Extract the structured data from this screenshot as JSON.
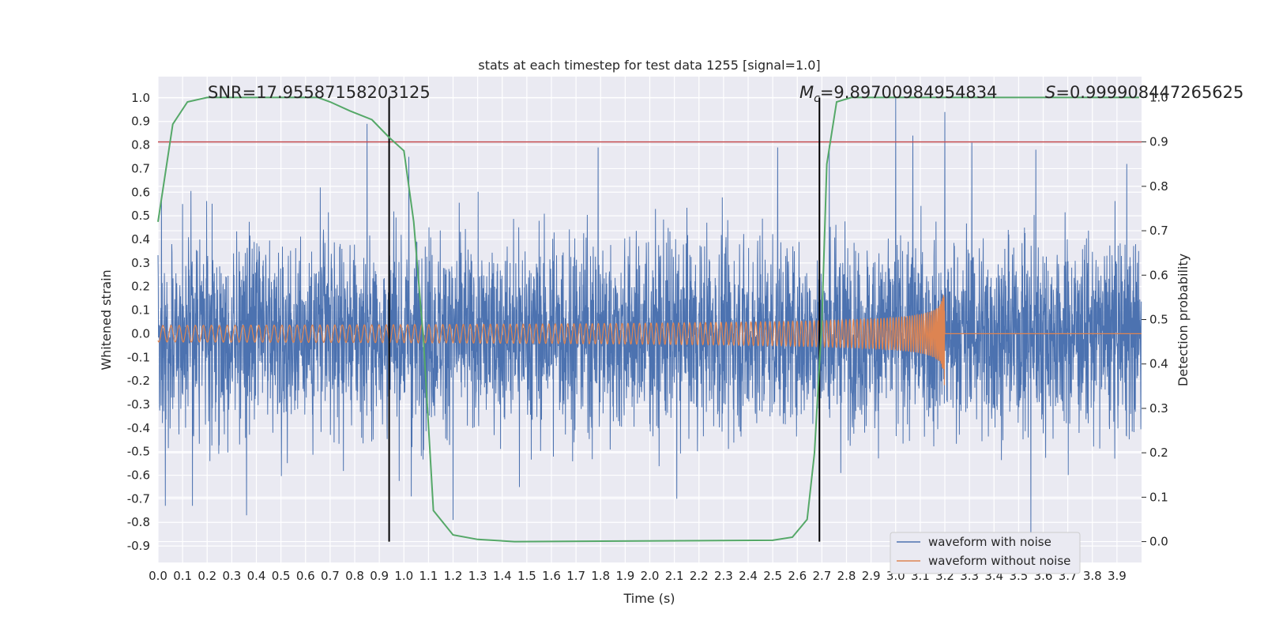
{
  "chart_data": {
    "type": "line",
    "title": "stats at each timestep for test data 1255 [signal=1.0]",
    "xlabel": "Time (s)",
    "ylabel": "Whitened strain",
    "y2label": "Detection probability",
    "xlim": [
      0.0,
      4.0
    ],
    "ylim": [
      -0.97,
      1.09
    ],
    "y2lim": [
      -0.047,
      1.047
    ],
    "xticks": [
      "0.0",
      "0.1",
      "0.2",
      "0.3",
      "0.4",
      "0.5",
      "0.6",
      "0.7",
      "0.8",
      "0.9",
      "1.0",
      "1.1",
      "1.2",
      "1.3",
      "1.4",
      "1.5",
      "1.6",
      "1.7",
      "1.8",
      "1.9",
      "2.0",
      "2.1",
      "2.2",
      "2.3",
      "2.4",
      "2.5",
      "2.6",
      "2.7",
      "2.8",
      "2.9",
      "3.0",
      "3.1",
      "3.2",
      "3.3",
      "3.4",
      "3.5",
      "3.6",
      "3.7",
      "3.8",
      "3.9"
    ],
    "yticks": [
      "-0.9",
      "-0.8",
      "-0.7",
      "-0.6",
      "-0.5",
      "-0.4",
      "-0.3",
      "-0.2",
      "-0.1",
      "0.0",
      "0.1",
      "0.2",
      "0.3",
      "0.4",
      "0.5",
      "0.6",
      "0.7",
      "0.8",
      "0.9",
      "1.0"
    ],
    "y2ticks": [
      "0.0",
      "0.1",
      "0.2",
      "0.3",
      "0.4",
      "0.5",
      "0.6",
      "0.7",
      "0.8",
      "0.9",
      "1.0"
    ],
    "stats": {
      "snr": "SNR=17.95587158203125",
      "mc_symbol": "M",
      "mc_sub": "c",
      "mc_value": "=9.89700984954834",
      "s_symbol": "S",
      "s_value": "=0.999908447265625"
    },
    "vertical_lines_s": [
      0.94,
      2.69
    ],
    "threshold_prob": 0.9,
    "series": [
      {
        "name": "waveform with noise",
        "color": "#4c72b0",
        "std": 0.2,
        "peaks": [
          [
            0.85,
            0.89
          ],
          [
            0.1,
            0.55
          ],
          [
            0.14,
            -0.73
          ],
          [
            0.36,
            -0.77
          ],
          [
            1.02,
            0.75
          ],
          [
            1.03,
            -0.69
          ],
          [
            1.2,
            -0.79
          ],
          [
            1.79,
            0.79
          ],
          [
            2.11,
            -0.7
          ],
          [
            2.52,
            0.79
          ],
          [
            2.73,
            0.8
          ],
          [
            3.0,
            1.0
          ],
          [
            3.07,
            0.84
          ],
          [
            3.2,
            0.94
          ],
          [
            3.31,
            0.81
          ],
          [
            3.55,
            -0.89
          ],
          [
            3.57,
            0.78
          ],
          [
            3.94,
            0.72
          ],
          [
            0.03,
            -0.73
          ],
          [
            0.66,
            0.62
          ],
          [
            1.47,
            -0.65
          ]
        ]
      },
      {
        "name": "waveform without noise",
        "color": "#dd8452"
      },
      {
        "name": "detection probability",
        "color": "#55a868",
        "points": [
          [
            0.0,
            0.72
          ],
          [
            0.06,
            0.94
          ],
          [
            0.12,
            0.99
          ],
          [
            0.2,
            1.0
          ],
          [
            0.65,
            1.0
          ],
          [
            0.7,
            0.99
          ],
          [
            0.78,
            0.97
          ],
          [
            0.87,
            0.95
          ],
          [
            0.94,
            0.91
          ],
          [
            1.0,
            0.88
          ],
          [
            1.04,
            0.72
          ],
          [
            1.08,
            0.45
          ],
          [
            1.12,
            0.07
          ],
          [
            1.2,
            0.015
          ],
          [
            1.3,
            0.005
          ],
          [
            1.45,
            0.0
          ],
          [
            2.5,
            0.003
          ],
          [
            2.58,
            0.01
          ],
          [
            2.64,
            0.05
          ],
          [
            2.67,
            0.2
          ],
          [
            2.7,
            0.5
          ],
          [
            2.72,
            0.85
          ],
          [
            2.76,
            0.99
          ],
          [
            2.82,
            1.0
          ],
          [
            3.99,
            1.0
          ]
        ]
      }
    ],
    "colors": {
      "threshold": "#c44e52",
      "vline": "#000000",
      "grid": "#ffffff",
      "background": "#eaeaf2"
    }
  },
  "legend": {
    "items": [
      {
        "label": "waveform with noise",
        "color": "#4c72b0"
      },
      {
        "label": "waveform without noise",
        "color": "#dd8452"
      }
    ]
  }
}
